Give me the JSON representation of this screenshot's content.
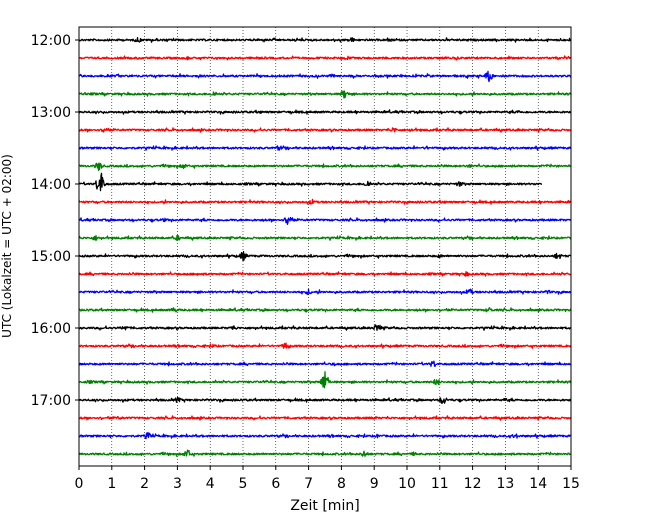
{
  "chart_data": {
    "type": "line",
    "title": "",
    "xlabel": "Zeit  [min]",
    "ylabel": "UTC (Lokalzeit = UTC + 02:00)",
    "xlim": [
      0,
      15
    ],
    "x_ticks": [
      "0",
      "1",
      "2",
      "3",
      "4",
      "5",
      "6",
      "7",
      "8",
      "9",
      "10",
      "11",
      "12",
      "13",
      "14",
      "15"
    ],
    "y_ticks": [
      "12:00",
      "13:00",
      "14:00",
      "15:00",
      "16:00",
      "17:00"
    ],
    "x_grid": true,
    "line_colors": [
      "#000000",
      "#ff0000",
      "#0000ff",
      "#008000"
    ],
    "traces": [
      {
        "start": "12:00",
        "color": "#000000",
        "end_min": 15.0,
        "events": [
          [
            1.8,
            3
          ],
          [
            8.3,
            3
          ]
        ]
      },
      {
        "start": "12:15",
        "color": "#ff0000",
        "end_min": 15.0,
        "events": [
          [
            3.3,
            2
          ],
          [
            11.5,
            2
          ]
        ]
      },
      {
        "start": "12:30",
        "color": "#0000ff",
        "end_min": 15.0,
        "events": [
          [
            12.5,
            6
          ],
          [
            1.2,
            2
          ],
          [
            7.7,
            2
          ]
        ]
      },
      {
        "start": "12:45",
        "color": "#008000",
        "end_min": 15.0,
        "events": [
          [
            8.1,
            5
          ],
          [
            4.1,
            3
          ]
        ]
      },
      {
        "start": "13:00",
        "color": "#000000",
        "end_min": 15.0,
        "events": [
          [
            5.5,
            2
          ],
          [
            13.4,
            2
          ]
        ]
      },
      {
        "start": "13:15",
        "color": "#ff0000",
        "end_min": 15.0,
        "events": [
          [
            0.8,
            4
          ],
          [
            9.6,
            3
          ],
          [
            10.1,
            2
          ]
        ]
      },
      {
        "start": "13:30",
        "color": "#0000ff",
        "end_min": 15.0,
        "events": [
          [
            6.1,
            3
          ],
          [
            10.6,
            2
          ]
        ]
      },
      {
        "start": "13:45",
        "color": "#008000",
        "end_min": 15.0,
        "events": [
          [
            0.6,
            5
          ],
          [
            3.2,
            3
          ],
          [
            11.9,
            2
          ]
        ]
      },
      {
        "start": "14:00",
        "color": "#000000",
        "end_min": 14.1,
        "events": [
          [
            0.65,
            14
          ],
          [
            8.8,
            4
          ],
          [
            11.6,
            3
          ]
        ]
      },
      {
        "start": "14:15",
        "color": "#ff0000",
        "end_min": 15.0,
        "events": [
          [
            7.1,
            3
          ],
          [
            11.1,
            2
          ]
        ]
      },
      {
        "start": "14:30",
        "color": "#0000ff",
        "end_min": 15.0,
        "events": [
          [
            6.4,
            8
          ],
          [
            2.6,
            2
          ]
        ]
      },
      {
        "start": "14:45",
        "color": "#008000",
        "end_min": 15.0,
        "events": [
          [
            0.5,
            3
          ],
          [
            3.0,
            3
          ]
        ]
      },
      {
        "start": "15:00",
        "color": "#000000",
        "end_min": 15.0,
        "events": [
          [
            5.0,
            5
          ],
          [
            14.6,
            4
          ],
          [
            11.0,
            2
          ]
        ]
      },
      {
        "start": "15:15",
        "color": "#ff0000",
        "end_min": 15.0,
        "events": [
          [
            11.8,
            3
          ],
          [
            3.6,
            2
          ]
        ]
      },
      {
        "start": "15:30",
        "color": "#0000ff",
        "end_min": 15.0,
        "events": [
          [
            11.9,
            4
          ],
          [
            7.0,
            3
          ],
          [
            14.3,
            2
          ]
        ]
      },
      {
        "start": "15:45",
        "color": "#008000",
        "end_min": 15.0,
        "events": [
          [
            2.9,
            3
          ],
          [
            12.5,
            3
          ]
        ]
      },
      {
        "start": "16:00",
        "color": "#000000",
        "end_min": 15.0,
        "events": [
          [
            9.1,
            5
          ],
          [
            1.4,
            3
          ],
          [
            4.7,
            3
          ]
        ]
      },
      {
        "start": "16:15",
        "color": "#ff0000",
        "end_min": 15.0,
        "events": [
          [
            6.3,
            4
          ],
          [
            4.1,
            2
          ]
        ]
      },
      {
        "start": "16:30",
        "color": "#0000ff",
        "end_min": 15.0,
        "events": [
          [
            10.8,
            4
          ],
          [
            7.8,
            2
          ]
        ]
      },
      {
        "start": "16:45",
        "color": "#008000",
        "end_min": 15.0,
        "events": [
          [
            7.5,
            11
          ],
          [
            10.9,
            4
          ],
          [
            0.3,
            2
          ]
        ]
      },
      {
        "start": "17:00",
        "color": "#000000",
        "end_min": 15.0,
        "events": [
          [
            11.1,
            5
          ],
          [
            3.0,
            3
          ],
          [
            13.0,
            2
          ]
        ]
      },
      {
        "start": "17:15",
        "color": "#ff0000",
        "end_min": 15.0,
        "events": [
          [
            9.0,
            2
          ],
          [
            1.2,
            2
          ]
        ]
      },
      {
        "start": "17:30",
        "color": "#0000ff",
        "end_min": 15.0,
        "events": [
          [
            2.1,
            4
          ],
          [
            13.3,
            3
          ],
          [
            9.1,
            2
          ]
        ]
      },
      {
        "start": "17:45",
        "color": "#008000",
        "end_min": 15.0,
        "events": [
          [
            3.3,
            5
          ],
          [
            8.7,
            4
          ],
          [
            10.2,
            2
          ]
        ]
      }
    ]
  }
}
